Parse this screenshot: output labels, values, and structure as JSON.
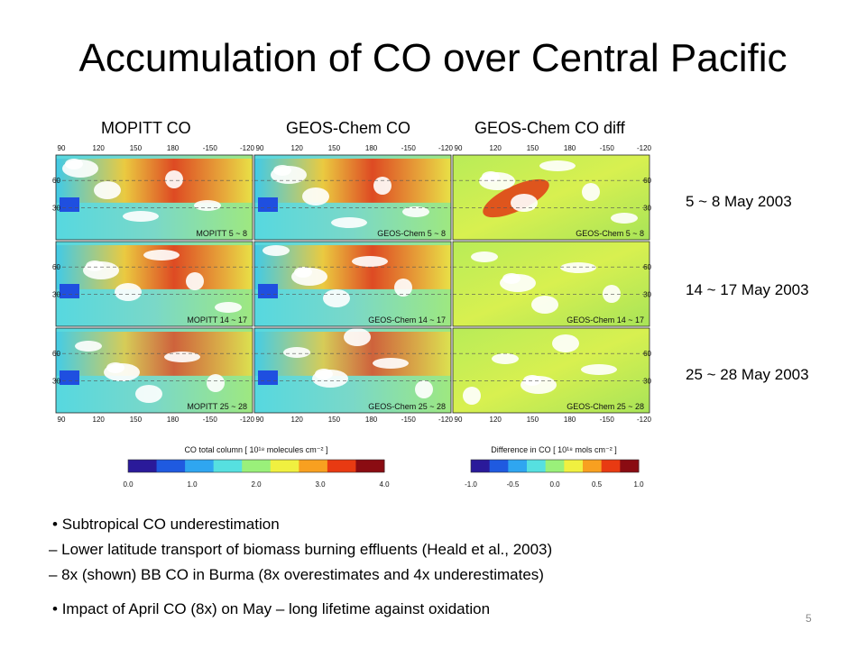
{
  "slide": {
    "title": "Accumulation of CO over Central Pacific",
    "page_number": "5"
  },
  "columns": [
    "MOPITT CO",
    "GEOS-Chem CO",
    "GEOS-Chem CO diff"
  ],
  "periods": [
    "5 ~ 8 May 2003",
    "14 ~ 17 May 2003",
    "25 ~ 28 May 2003"
  ],
  "panel_labels": [
    [
      "MOPITT 5 ~ 8",
      "GEOS-Chem 5 ~ 8",
      "GEOS-Chem 5 ~ 8"
    ],
    [
      "MOPITT 14 ~ 17",
      "GEOS-Chem 14 ~ 17",
      "GEOS-Chem 14 ~ 17"
    ],
    [
      "MOPITT 25 ~ 28",
      "GEOS-Chem 25 ~ 28",
      "GEOS-Chem 25 ~ 28"
    ]
  ],
  "map_axes": {
    "lon_ticks": [
      "90",
      "120",
      "150",
      "180",
      "-150",
      "-120"
    ],
    "lat_ticks": [
      "60",
      "30"
    ]
  },
  "colorbars": {
    "total": {
      "title": "CO total column [ 10¹⁸ molecules cm⁻² ]",
      "ticks": [
        "0.0",
        "1.0",
        "2.0",
        "3.0",
        "4.0"
      ],
      "colors": [
        "#2a1a9a",
        "#1f5ae0",
        "#2fa6f0",
        "#56e0e0",
        "#9af07a",
        "#f0f040",
        "#f8a020",
        "#e83a12",
        "#8a0c12"
      ]
    },
    "diff": {
      "title": "Difference in CO [ 10¹⁸ mols cm⁻² ]",
      "ticks": [
        "-1.0",
        "-0.5",
        "0.0",
        "0.5",
        "1.0"
      ],
      "colors": [
        "#2a1a9a",
        "#1f5ae0",
        "#2fa6f0",
        "#56e0e0",
        "#9af07a",
        "#f0f040",
        "#f8a020",
        "#e83a12",
        "#8a0c12"
      ]
    }
  },
  "bullets": [
    "Subtropical CO underestimation",
    "– Lower latitude transport of biomass burning effluents (Heald et al., 2003)",
    "– 8x (shown) BB CO in Burma (8x overestimates and 4x underestimates)",
    "Impact of April CO (8x) on May – long lifetime against oxidation"
  ]
}
